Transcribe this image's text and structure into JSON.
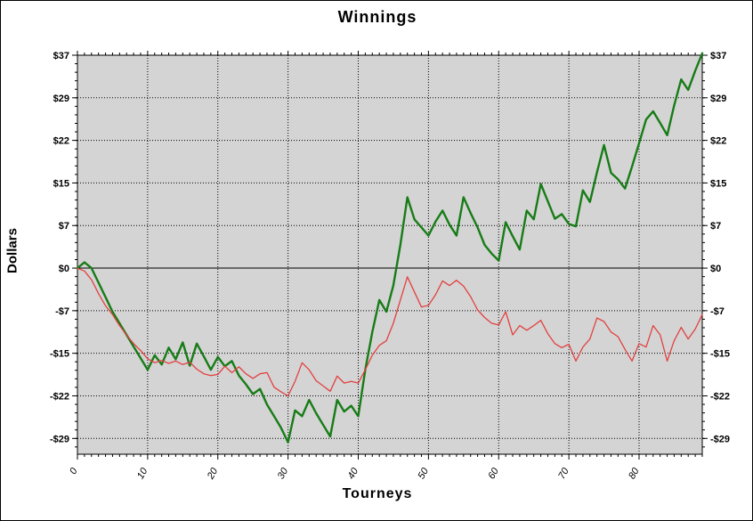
{
  "chart_data": {
    "type": "line",
    "title": "Winnings",
    "xlabel": "Tourneys",
    "ylabel": "Dollars",
    "x_tick_labels": [
      "0",
      "10",
      "20",
      "30",
      "40",
      "50",
      "60",
      "70",
      "80"
    ],
    "x_tick_values": [
      0,
      10,
      20,
      30,
      40,
      50,
      60,
      70,
      80
    ],
    "y_tick_labels": [
      "$37",
      "$29",
      "$22",
      "$15",
      "$7",
      "$0",
      "-$7",
      "-$15",
      "-$22",
      "-$29"
    ],
    "y_tick_values": [
      36.67,
      29.33,
      22,
      14.67,
      7.33,
      0,
      -7.33,
      -14.67,
      -22,
      -29.33
    ],
    "xlim": [
      0,
      89
    ],
    "ylim": [
      -32,
      36.67
    ],
    "grid": true,
    "legend_position": "none",
    "plot_bg_color": "#d4d4d4",
    "grid_color": "#000000",
    "axis_color": "#000000",
    "x_step": 1,
    "series": [
      {
        "name": "winnings-green",
        "color": "#177c17",
        "stroke_width": 2.4,
        "values": [
          0,
          1,
          0,
          -2.5,
          -5,
          -7.5,
          -9.5,
          -11.5,
          -13.5,
          -15.5,
          -17.5,
          -15,
          -16.6,
          -13.7,
          -15.7,
          -12.8,
          -16.8,
          -13,
          -15.2,
          -17.5,
          -15.3,
          -16.9,
          -16,
          -18.5,
          -20,
          -21.7,
          -20.8,
          -23.5,
          -25.5,
          -27.5,
          -30,
          -24.5,
          -25.5,
          -22.7,
          -25,
          -27,
          -29,
          -22.7,
          -24.7,
          -23.7,
          -25.5,
          -17.5,
          -11,
          -5.5,
          -7.5,
          -3,
          4,
          12.2,
          8.4,
          7,
          5.6,
          8,
          9.9,
          7.5,
          5.6,
          12.2,
          9.5,
          7,
          4,
          2.5,
          1.3,
          7.9,
          5.5,
          3.2,
          9.9,
          8.4,
          14.5,
          11.5,
          8.5,
          9.3,
          7.6,
          7.2,
          13.4,
          11.4,
          16.5,
          21.2,
          16.4,
          15.3,
          13.7,
          17.5,
          21.5,
          25.6,
          27,
          25,
          22.9,
          28,
          32.5,
          30.7,
          34,
          37
        ]
      },
      {
        "name": "winnings-red",
        "color": "#e34040",
        "stroke_width": 1.3,
        "values": [
          0,
          -0.5,
          -2,
          -4.4,
          -6.5,
          -8,
          -9.9,
          -11.5,
          -13,
          -14.2,
          -15.6,
          -16.3,
          -15.9,
          -16.4,
          -16,
          -16.6,
          -16.2,
          -17.4,
          -18.2,
          -18.5,
          -18.3,
          -16.9,
          -18,
          -17,
          -18.2,
          -19,
          -18.2,
          -18,
          -20.5,
          -21.3,
          -22,
          -19.5,
          -16.3,
          -17.5,
          -19.4,
          -20.3,
          -21.2,
          -18.6,
          -19.8,
          -19.5,
          -19.8,
          -17.5,
          -15,
          -13.3,
          -12.5,
          -9.5,
          -5.5,
          -1.5,
          -4.1,
          -6.7,
          -6.4,
          -4.6,
          -2.2,
          -3,
          -2.1,
          -3.1,
          -4.9,
          -7.2,
          -8.5,
          -9.5,
          -9.8,
          -7.5,
          -11.5,
          -9.9,
          -10.7,
          -9.9,
          -9,
          -11.3,
          -13,
          -13.7,
          -13.1,
          -16,
          -13.6,
          -12.2,
          -8.6,
          -9.2,
          -11,
          -11.8,
          -14,
          -16,
          -13,
          -13.6,
          -9.9,
          -11.5,
          -16,
          -12.5,
          -10.2,
          -12.2,
          -10.5,
          -8
        ]
      }
    ]
  }
}
